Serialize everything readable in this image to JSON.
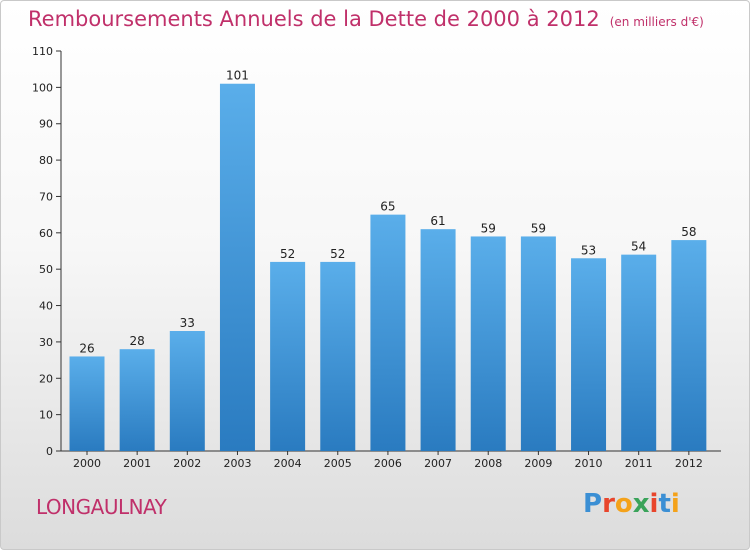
{
  "header": {
    "title": "Remboursements Annuels de la Dette de 2000 à 2012",
    "subtitle": "(en milliers d'€)"
  },
  "footer": {
    "commune": "LONGAULNAY",
    "logo_text": "Proxiti",
    "logo_colors": [
      "#3b8fd4",
      "#e8452c",
      "#f4a21a",
      "#3aa35a",
      "#e8452c",
      "#3b8fd4",
      "#f4a21a"
    ]
  },
  "colors": {
    "title": "#c0306a",
    "bar_top": "#5aaeea",
    "bar_bottom": "#2a7bc0"
  },
  "chart_data": {
    "type": "bar",
    "categories": [
      "2000",
      "2001",
      "2002",
      "2003",
      "2004",
      "2005",
      "2006",
      "2007",
      "2008",
      "2009",
      "2010",
      "2011",
      "2012"
    ],
    "values": [
      26,
      28,
      33,
      101,
      52,
      52,
      65,
      61,
      59,
      59,
      53,
      54,
      58
    ],
    "title": "Remboursements Annuels de la Dette de 2000 à 2012",
    "subtitle": "(en milliers d'€)",
    "xlabel": "",
    "ylabel": "",
    "ylim": [
      0,
      110
    ],
    "yticks": [
      0,
      10,
      20,
      30,
      40,
      50,
      60,
      70,
      80,
      90,
      100,
      110
    ],
    "grid": false,
    "legend": "none"
  }
}
